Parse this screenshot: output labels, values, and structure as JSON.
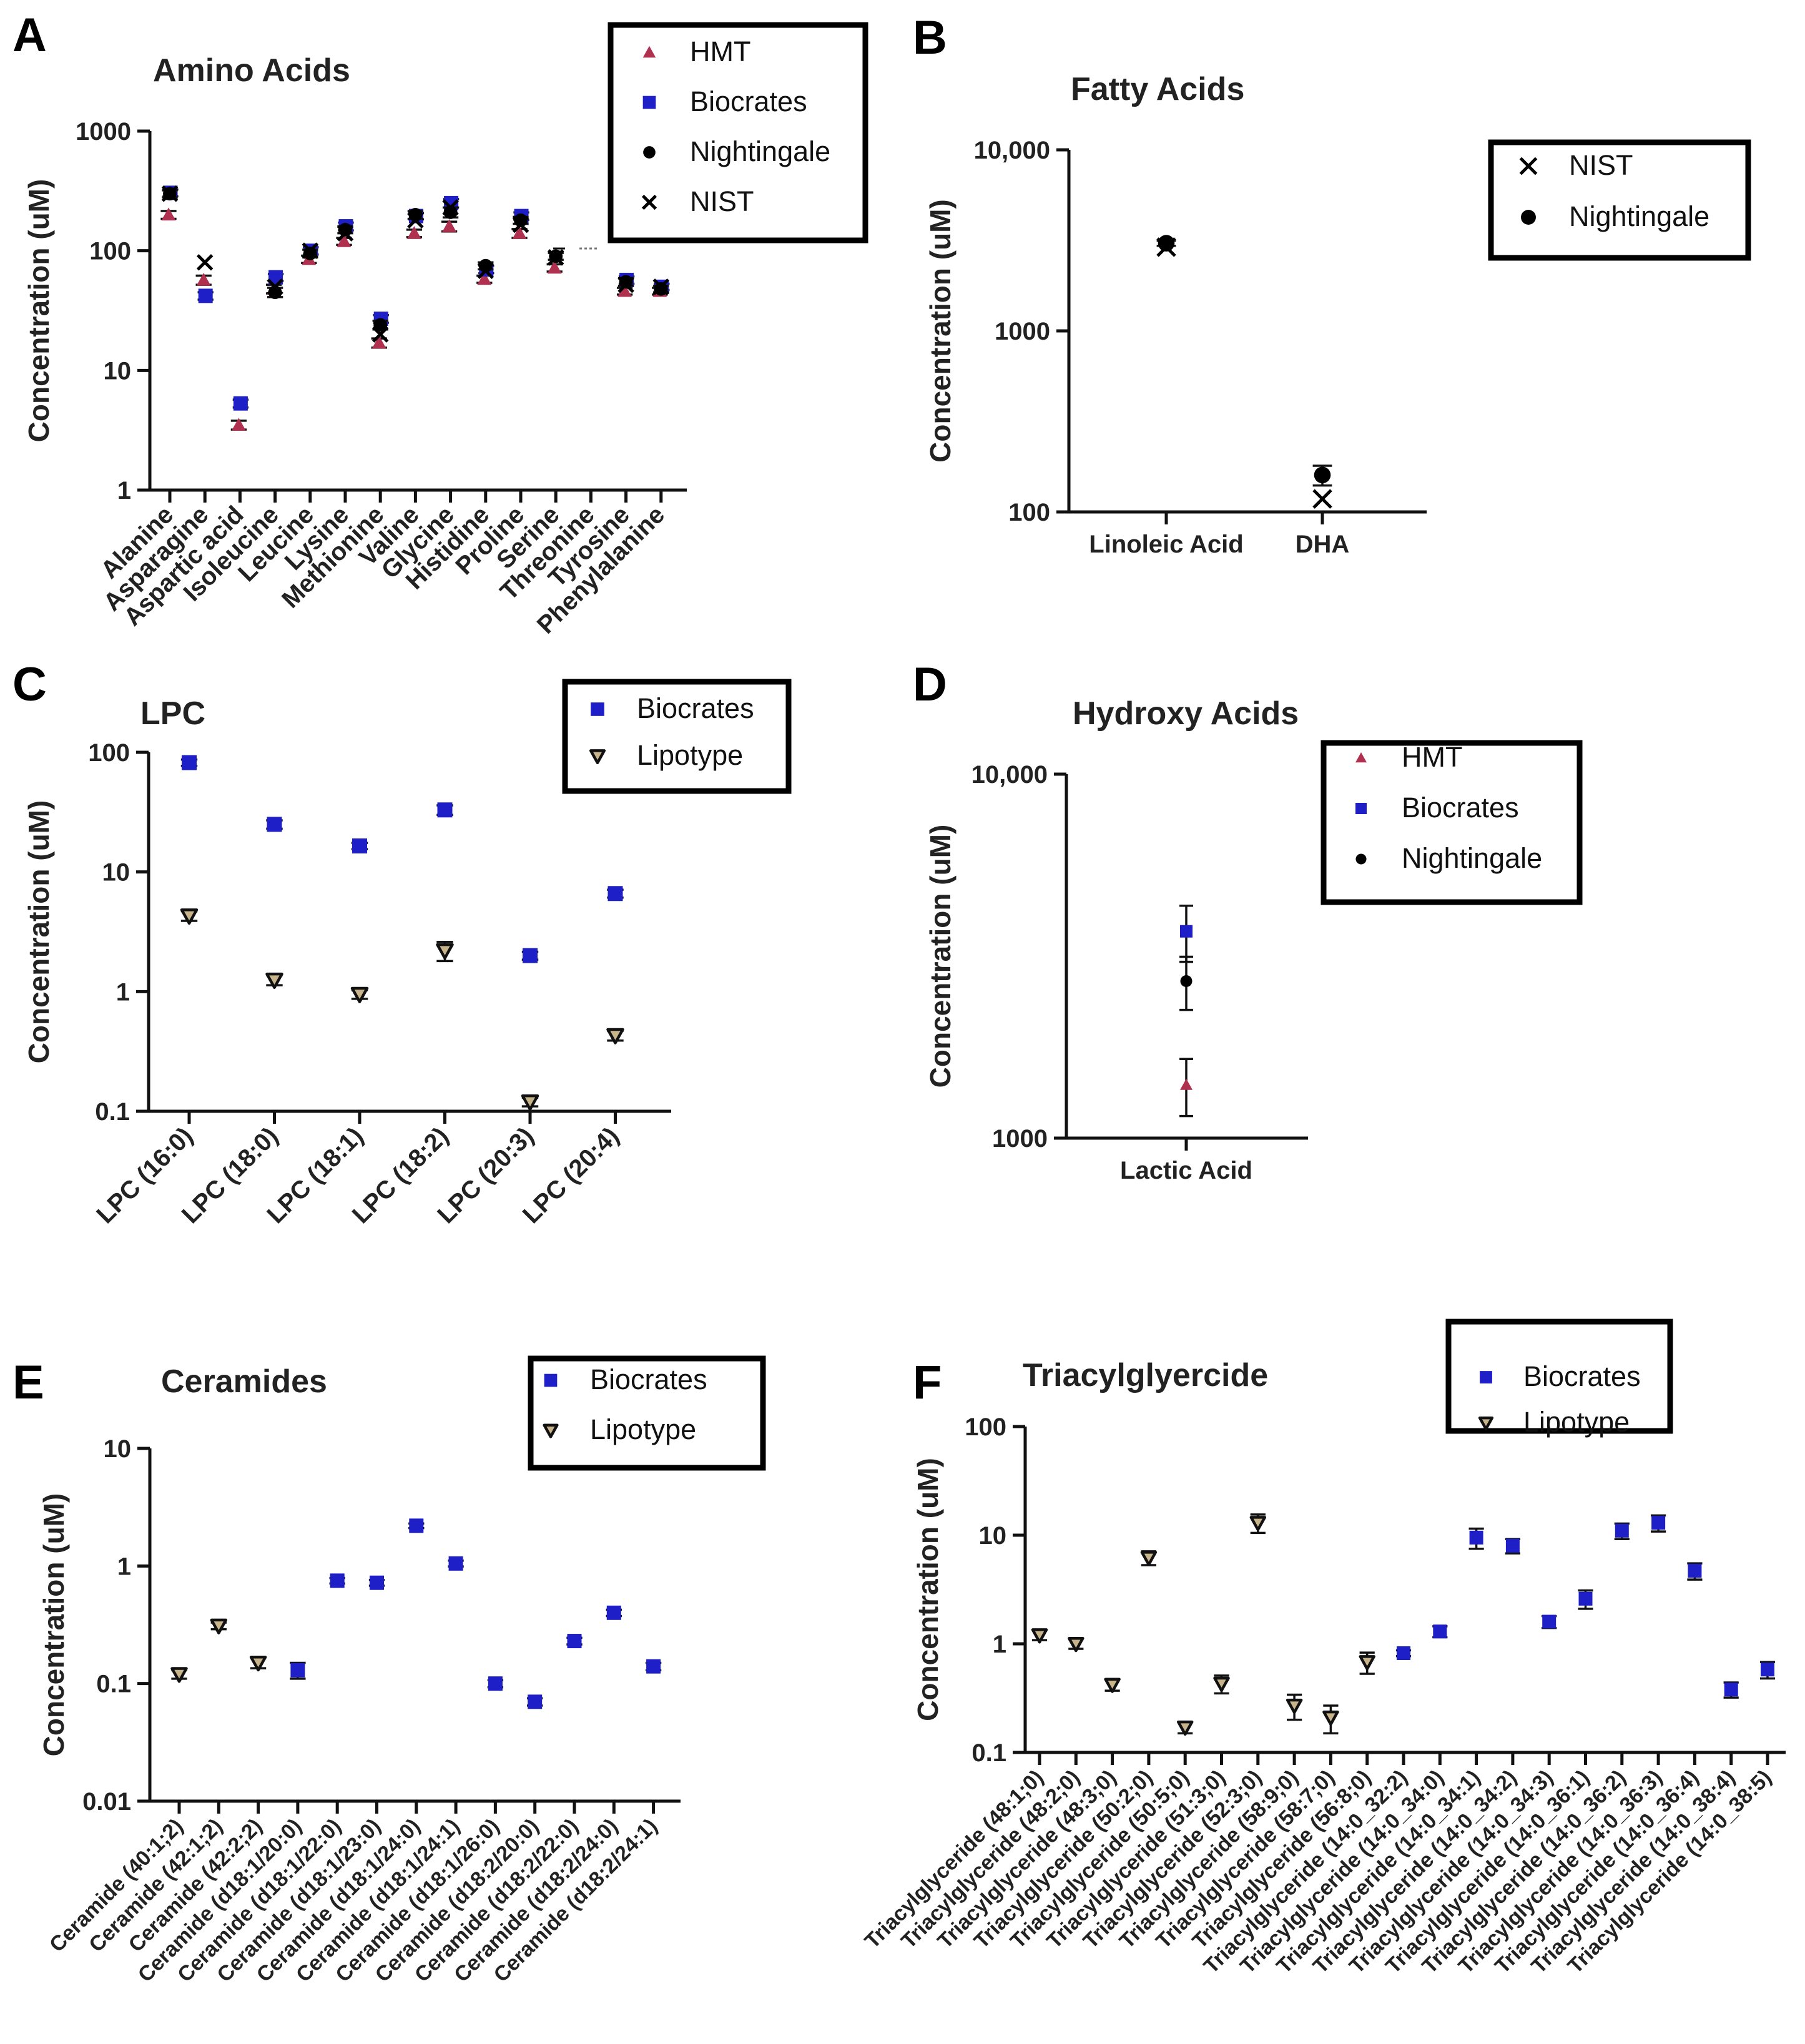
{
  "colors": {
    "HMT": "#b0304f",
    "Biocrates": "#1f1fc8",
    "Nightingale": "#000000",
    "NIST": "#000000",
    "Lipotype": "#c8b48a"
  },
  "chart_data": [
    {
      "id": "A",
      "panel_label": "A",
      "type": "scatter",
      "title": "Amino Acids",
      "ylabel": "Concentration (uM)",
      "yscale": "log",
      "ylim": [
        1,
        1000
      ],
      "yticks": [
        "1",
        "10",
        "100",
        "1000"
      ],
      "legend": [
        "HMT",
        "Biocrates",
        "Nightingale",
        "NIST"
      ],
      "legend_position": "top-right",
      "categories": [
        "Alanine",
        "Asparagine",
        "Aspartic acid",
        "Isoleucine",
        "Leucine",
        "Lysine",
        "Methionine",
        "Valine",
        "Glycine",
        "Histidine",
        "Proline",
        "Serine",
        "Threonine",
        "Tyrosine",
        "Phenylalanine"
      ],
      "series": [
        {
          "name": "HMT",
          "marker": "triangle",
          "values": [
            200,
            57,
            3.5,
            48,
            85,
            120,
            17,
            140,
            160,
            58,
            140,
            72,
            null,
            46,
            46
          ],
          "err": [
            15,
            5,
            0.3,
            4,
            6,
            8,
            1.5,
            10,
            15,
            4,
            12,
            5,
            null,
            3,
            3
          ]
        },
        {
          "name": "Biocrates",
          "marker": "square",
          "values": [
            305,
            42,
            5.3,
            60,
            100,
            160,
            27,
            195,
            250,
            70,
            195,
            null,
            null,
            57,
            50
          ],
          "err": [
            20,
            3,
            0.4,
            4,
            7,
            12,
            2,
            12,
            20,
            5,
            14,
            null,
            null,
            4,
            3
          ]
        },
        {
          "name": "Nightingale",
          "marker": "circle",
          "values": [
            300,
            null,
            null,
            45,
            95,
            150,
            24,
            200,
            210,
            75,
            180,
            90,
            null,
            55,
            48
          ],
          "err": [
            20,
            null,
            null,
            4,
            7,
            10,
            2,
            15,
            20,
            5,
            12,
            6,
            null,
            4,
            3
          ]
        },
        {
          "name": "NIST",
          "marker": "x",
          "values": [
            300,
            80,
            null,
            50,
            100,
            140,
            20,
            180,
            230,
            68,
            165,
            88,
            null,
            52,
            50
          ],
          "err": [
            0,
            0,
            null,
            0,
            0,
            0,
            0,
            0,
            0,
            0,
            0,
            0,
            null,
            0,
            0
          ]
        }
      ]
    },
    {
      "id": "B",
      "panel_label": "B",
      "type": "scatter",
      "title": "Fatty Acids",
      "ylabel": "Concentration (uM)",
      "yscale": "log",
      "ylim": [
        100,
        10000
      ],
      "yticks": [
        "100",
        "1000",
        "10,000"
      ],
      "legend": [
        "NIST",
        "Nightingale"
      ],
      "legend_position": "top-right",
      "categories": [
        "Linoleic Acid",
        "DHA"
      ],
      "series": [
        {
          "name": "NIST",
          "marker": "x",
          "values": [
            2900,
            118
          ],
          "err": [
            0,
            0
          ]
        },
        {
          "name": "Nightingale",
          "marker": "circle",
          "values": [
            3050,
            160
          ],
          "err": [
            100,
            20
          ]
        }
      ]
    },
    {
      "id": "C",
      "panel_label": "C",
      "type": "scatter",
      "title": "LPC",
      "ylabel": "Concentration (uM)",
      "yscale": "log",
      "ylim": [
        0.1,
        100
      ],
      "yticks": [
        "0.1",
        "1",
        "10",
        "100"
      ],
      "legend": [
        "Biocrates",
        "Lipotype"
      ],
      "legend_position": "top-right",
      "categories": [
        "LPC (16:0)",
        "LPC (18:0)",
        "LPC (18:1)",
        "LPC (18:2)",
        "LPC (20:3)",
        "LPC (20:4)"
      ],
      "series": [
        {
          "name": "Biocrates",
          "marker": "square",
          "values": [
            82,
            25,
            16.5,
            33,
            2.0,
            6.6
          ],
          "err": [
            5,
            2,
            1,
            3,
            0.15,
            0.5
          ]
        },
        {
          "name": "Lipotype",
          "marker": "triangle-down",
          "values": [
            4.3,
            1.25,
            0.95,
            2.2,
            0.12,
            0.43
          ],
          "err": [
            0.4,
            0.12,
            0.08,
            0.4,
            0.01,
            0.04
          ]
        }
      ]
    },
    {
      "id": "D",
      "panel_label": "D",
      "type": "scatter",
      "title": "Hydroxy Acids",
      "ylabel": "Concentration (uM)",
      "yscale": "log",
      "ylim": [
        1000,
        10000
      ],
      "yticks": [
        "1000",
        "10,000"
      ],
      "legend": [
        "HMT",
        "Biocrates",
        "Nightingale"
      ],
      "legend_position": "top-right",
      "categories": [
        "Lactic Acid"
      ],
      "series": [
        {
          "name": "HMT",
          "marker": "triangle",
          "values": [
            1400
          ],
          "err": [
            250
          ]
        },
        {
          "name": "Biocrates",
          "marker": "square",
          "values": [
            3700
          ],
          "err": [
            650
          ]
        },
        {
          "name": "Nightingale",
          "marker": "circle",
          "values": [
            2700
          ],
          "err": [
            450
          ]
        }
      ]
    },
    {
      "id": "E",
      "panel_label": "E",
      "type": "scatter",
      "title": "Ceramides",
      "ylabel": "Concentration (uM)",
      "yscale": "log",
      "ylim": [
        0.01,
        10
      ],
      "yticks": [
        "0.01",
        "0.1",
        "1",
        "10"
      ],
      "legend": [
        "Biocrates",
        "Lipotype"
      ],
      "legend_position": "top-right",
      "categories": [
        "Ceramide (40:1;2)",
        "Ceramide (42:1;2)",
        "Ceramide (42:2;2)",
        "Ceramide (d18:1/20:0)",
        "Ceramide (d18:1/22:0)",
        "Ceramide (d18:1/23:0)",
        "Ceramide (d18:1/24:0)",
        "Ceramide (d18:1/24:1)",
        "Ceramide (d18:1/26:0)",
        "Ceramide (d18:2/20:0)",
        "Ceramide (d18:2/22:0)",
        "Ceramide (d18:2/24:0)",
        "Ceramide (d18:2/24:1)"
      ],
      "series": [
        {
          "name": "Biocrates",
          "marker": "square",
          "values": [
            null,
            null,
            null,
            0.13,
            0.75,
            0.72,
            2.2,
            1.05,
            0.1,
            0.07,
            0.23,
            0.4,
            0.14
          ],
          "err": [
            null,
            null,
            null,
            0.02,
            0.04,
            0.04,
            0.1,
            0.06,
            0.007,
            0.005,
            0.015,
            0.025,
            0.01
          ]
        },
        {
          "name": "Lipotype",
          "marker": "triangle-down",
          "values": [
            0.12,
            0.31,
            0.15,
            null,
            null,
            null,
            null,
            null,
            null,
            null,
            null,
            null,
            null
          ],
          "err": [
            0.01,
            0.02,
            0.015,
            null,
            null,
            null,
            null,
            null,
            null,
            null,
            null,
            null,
            null
          ]
        }
      ]
    },
    {
      "id": "F",
      "panel_label": "F",
      "type": "scatter",
      "title": "Triacylglyercide",
      "ylabel": "Concentration (uM)",
      "yscale": "log",
      "ylim": [
        0.1,
        100
      ],
      "yticks": [
        "0.1",
        "1",
        "10",
        "100"
      ],
      "legend": [
        "Biocrates",
        "Lipotype"
      ],
      "legend_position": "top-right",
      "categories": [
        "Triacylglyceride (48:1;0)",
        "Triacylglyceride (48:2;0)",
        "Triacylglyceride (48:3;0)",
        "Triacylglyceride (50:2;0)",
        "Triacylglyceride (50:5;0)",
        "Triacylglyceride (51:3;0)",
        "Triacylglyceride (52:3;0)",
        "Triacylglyceride (58:9;0)",
        "Triacylglyceride (58:7;0)",
        "Triacylglyceride (56:8;0)",
        "Triacylglyceride (14:0_32:2)",
        "Triacylglyceride (14:0_34:0)",
        "Triacylglyceride (14:0_34:1)",
        "Triacylglyceride (14:0_34:2)",
        "Triacylglyceride (14:0_34:3)",
        "Triacylglyceride (14:0_36:1)",
        "Triacylglyceride (14:0_36:2)",
        "Triacylglyceride (14:0_36:3)",
        "Triacylglyceride (14:0_36:4)",
        "Triacylglyceride (14:0_38:4)",
        "Triacylglyceride (14:0_38:5)"
      ],
      "series": [
        {
          "name": "Biocrates",
          "marker": "square",
          "values": [
            null,
            null,
            null,
            null,
            null,
            null,
            null,
            null,
            null,
            null,
            0.82,
            1.3,
            9.5,
            8.0,
            1.6,
            2.6,
            11,
            13,
            4.7,
            0.38,
            0.58
          ],
          "err": [
            null,
            null,
            null,
            null,
            null,
            null,
            null,
            null,
            null,
            null,
            0.05,
            0.15,
            2,
            1.2,
            0.2,
            0.5,
            1.8,
            2.2,
            0.8,
            0.06,
            0.1
          ]
        },
        {
          "name": "Lipotype",
          "marker": "triangle-down",
          "values": [
            1.2,
            1.0,
            0.42,
            6.2,
            0.17,
            0.43,
            13,
            0.27,
            0.21,
            0.68,
            null,
            null,
            null,
            null,
            null,
            null,
            null,
            null,
            null,
            null,
            null
          ],
          "err": [
            0.12,
            0.1,
            0.05,
            0.9,
            0.02,
            0.08,
            2.5,
            0.07,
            0.06,
            0.15,
            null,
            null,
            null,
            null,
            null,
            null,
            null,
            null,
            null,
            null,
            null
          ]
        }
      ]
    }
  ]
}
